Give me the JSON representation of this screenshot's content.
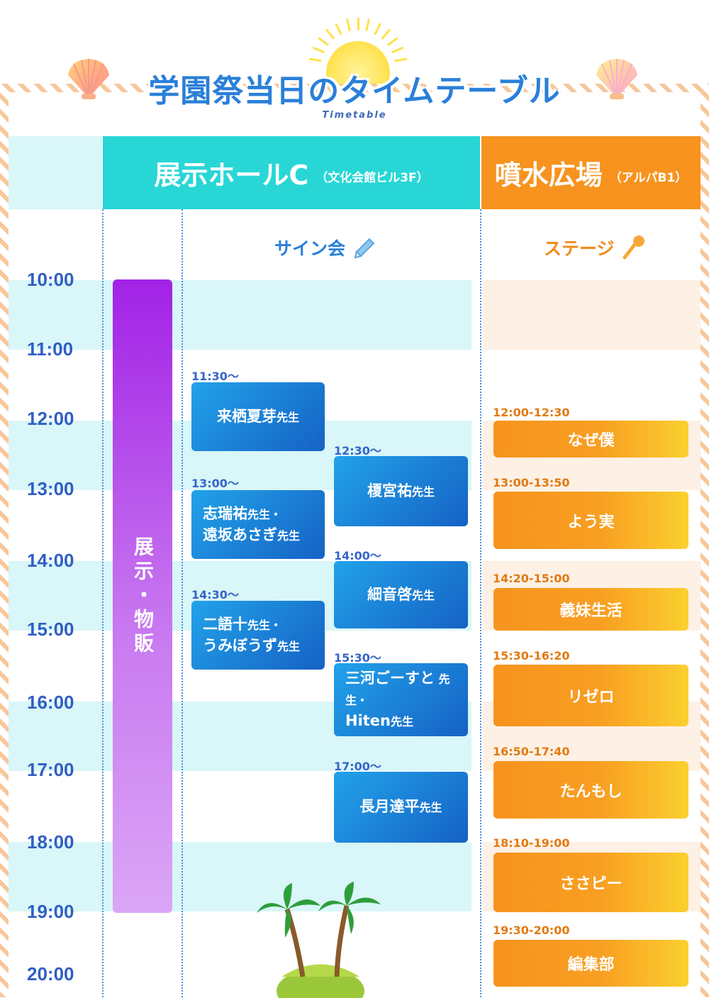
{
  "title": "学園祭当日のタイムテーブル",
  "subtitle": "Timetable",
  "venues": {
    "hall": {
      "name": "展示ホールC",
      "sub": "（文化会館ビル3F）"
    },
    "fountain": {
      "name": "噴水広場",
      "sub": "（アルパB1）"
    }
  },
  "sections": {
    "signing": "サイン会",
    "stage": "ステージ"
  },
  "times": [
    "10:00",
    "11:00",
    "12:00",
    "13:00",
    "14:00",
    "15:00",
    "16:00",
    "17:00",
    "18:00",
    "19:00",
    "20:00"
  ],
  "exhibit": {
    "label": "展示・物販"
  },
  "signing_col1": [
    {
      "time": "11:30～",
      "lines": [
        {
          "name": "来栖夏芽",
          "suffix": "先生"
        }
      ]
    },
    {
      "time": "13:00～",
      "lines": [
        {
          "name": "志瑞祐",
          "suffix": "先生・"
        },
        {
          "name": "遠坂あさぎ",
          "suffix": "先生"
        }
      ]
    },
    {
      "time": "14:30～",
      "lines": [
        {
          "name": "二語十",
          "suffix": "先生・"
        },
        {
          "name": "うみぼうず",
          "suffix": "先生"
        }
      ]
    }
  ],
  "signing_col2": [
    {
      "time": "12:30～",
      "lines": [
        {
          "name": "榎宮祐",
          "suffix": "先生"
        }
      ]
    },
    {
      "time": "14:00～",
      "lines": [
        {
          "name": "細音啓",
          "suffix": "先生"
        }
      ]
    },
    {
      "time": "15:30～",
      "lines": [
        {
          "name": "三河ごーすと",
          "suffix": " 先生・"
        },
        {
          "name": "Hiten",
          "suffix": "先生"
        }
      ]
    },
    {
      "time": "17:00～",
      "lines": [
        {
          "name": "長月達平",
          "suffix": "先生"
        }
      ]
    }
  ],
  "stage": [
    {
      "time": "12:00-12:30",
      "title": "なぜ僕"
    },
    {
      "time": "13:00-13:50",
      "title": "よう実"
    },
    {
      "time": "14:20-15:00",
      "title": "義妹生活"
    },
    {
      "time": "15:30-16:20",
      "title": "リゼロ"
    },
    {
      "time": "16:50-17:40",
      "title": "たんもし"
    },
    {
      "time": "18:10-19:00",
      "title": "ささピー"
    },
    {
      "time": "19:30-20:00",
      "title": "編集部"
    }
  ],
  "colors": {
    "hall": "#29d6d6",
    "fountain": "#f7931e",
    "exhibit": "#a222e6",
    "signing": "#1562c4",
    "time": "#2f5fc4"
  }
}
